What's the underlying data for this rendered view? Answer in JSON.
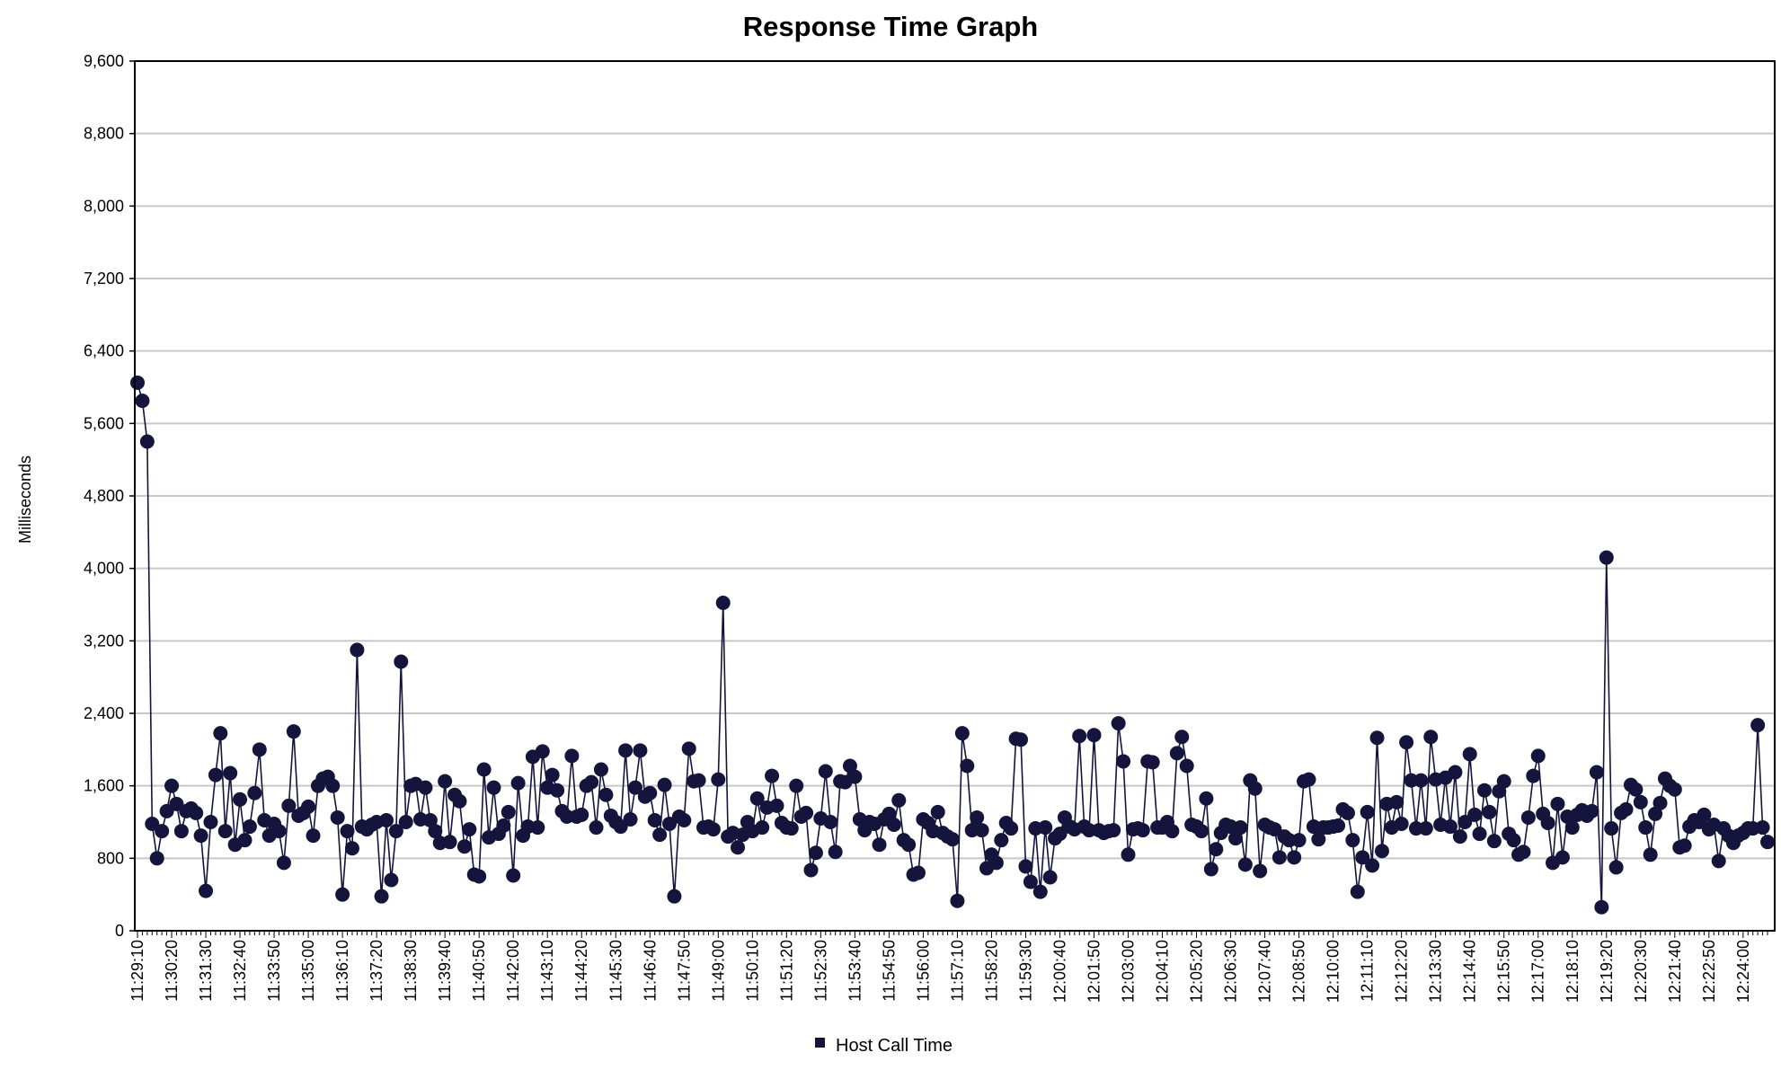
{
  "chart_data": {
    "type": "line",
    "title": "Response Time Graph",
    "xlabel": "",
    "ylabel": "Milliseconds",
    "ylim": [
      0,
      9600
    ],
    "yticks": [
      0,
      800,
      1600,
      2400,
      3200,
      4000,
      4800,
      5600,
      6400,
      7200,
      8000,
      8800,
      9600
    ],
    "x_tick_labels": [
      "11:29:10",
      "11:30:20",
      "11:31:30",
      "11:32:40",
      "11:33:50",
      "11:35:00",
      "11:36:10",
      "11:37:20",
      "11:38:30",
      "11:39:40",
      "11:40:50",
      "11:42:00",
      "11:43:10",
      "11:44:20",
      "11:45:30",
      "11:46:40",
      "11:47:50",
      "11:49:00",
      "11:50:10",
      "11:51:20",
      "11:52:30",
      "11:53:40",
      "11:54:50",
      "11:56:00",
      "11:57:10",
      "11:58:20",
      "11:59:30",
      "12:00:40",
      "12:01:50",
      "12:03:00",
      "12:04:10",
      "12:05:20",
      "12:06:30",
      "12:07:40",
      "12:08:50",
      "12:10:00",
      "12:11:10",
      "12:12:20",
      "12:13:30",
      "12:14:40",
      "12:15:50",
      "12:17:00",
      "12:18:10",
      "12:19:20",
      "12:20:30",
      "12:21:40",
      "12:22:50",
      "12:24:00"
    ],
    "grid": true,
    "legend_position": "bottom-center",
    "series": [
      {
        "name": "Host Call Time",
        "color": "#14143c",
        "values": [
          6050,
          5850,
          5400,
          1180,
          800,
          1100,
          1320,
          1600,
          1400,
          1100,
          1320,
          1350,
          1300,
          1050,
          440,
          1200,
          1720,
          2180,
          1100,
          1740,
          950,
          1450,
          1000,
          1150,
          1520,
          2000,
          1220,
          1050,
          1180,
          1100,
          750,
          1380,
          2200,
          1270,
          1300,
          1370,
          1050,
          1600,
          1680,
          1700,
          1600,
          1250,
          400,
          1100,
          910,
          3100,
          1150,
          1120,
          1170,
          1200,
          380,
          1220,
          560,
          1100,
          2970,
          1200,
          1600,
          1620,
          1230,
          1580,
          1220,
          1100,
          970,
          1650,
          980,
          1500,
          1430,
          930,
          1120,
          620,
          600,
          1780,
          1030,
          1580,
          1070,
          1160,
          1310,
          610,
          1630,
          1050,
          1150,
          1920,
          1140,
          1980,
          1580,
          1720,
          1550,
          1320,
          1260,
          1930,
          1260,
          1280,
          1600,
          1640,
          1140,
          1780,
          1500,
          1270,
          1200,
          1150,
          1990,
          1230,
          1580,
          1990,
          1480,
          1520,
          1220,
          1060,
          1610,
          1180,
          380,
          1260,
          1220,
          2010,
          1650,
          1660,
          1140,
          1150,
          1120,
          1670,
          3620,
          1040,
          1080,
          920,
          1060,
          1200,
          1100,
          1460,
          1140,
          1360,
          1710,
          1380,
          1190,
          1140,
          1130,
          1600,
          1260,
          1300,
          670,
          860,
          1240,
          1760,
          1200,
          870,
          1650,
          1640,
          1820,
          1700,
          1230,
          1110,
          1200,
          1180,
          950,
          1230,
          1290,
          1170,
          1440,
          1000,
          950,
          620,
          640,
          1230,
          1190,
          1100,
          1310,
          1080,
          1040,
          1010,
          330,
          2180,
          1820,
          1110,
          1250,
          1110,
          690,
          840,
          750,
          1000,
          1190,
          1130,
          2120,
          2110,
          710,
          540,
          1130,
          430,
          1140,
          590,
          1020,
          1070,
          1250,
          1150,
          1120,
          2150,
          1150,
          1110,
          2160,
          1110,
          1080,
          1100,
          1110,
          2290,
          1870,
          840,
          1120,
          1130,
          1110,
          1870,
          1860,
          1140,
          1140,
          1200,
          1100,
          1960,
          2140,
          1820,
          1170,
          1150,
          1100,
          1460,
          680,
          900,
          1080,
          1170,
          1150,
          1020,
          1140,
          730,
          1660,
          1570,
          660,
          1170,
          1140,
          1120,
          810,
          1040,
          1000,
          810,
          1000,
          1650,
          1670,
          1150,
          1010,
          1140,
          1140,
          1150,
          1160,
          1340,
          1300,
          1000,
          430,
          810,
          1310,
          720,
          2130,
          880,
          1400,
          1140,
          1420,
          1180,
          2080,
          1660,
          1130,
          1660,
          1130,
          2140,
          1670,
          1170,
          1690,
          1150,
          1750,
          1040,
          1200,
          1950,
          1280,
          1070,
          1550,
          1310,
          990,
          1540,
          1650,
          1070,
          1000,
          840,
          870,
          1250,
          1710,
          1930,
          1290,
          1190,
          750,
          1400,
          810,
          1260,
          1140,
          1280,
          1330,
          1270,
          1320,
          1750,
          260,
          4120,
          1130,
          700,
          1300,
          1340,
          1610,
          1560,
          1420,
          1140,
          840,
          1290,
          1410,
          1680,
          1600,
          1560,
          920,
          940,
          1150,
          1220,
          1200,
          1280,
          1120,
          1170,
          770,
          1130,
          1050,
          970,
          1050,
          1080,
          1130,
          1130,
          2270,
          1140,
          980
        ]
      }
    ]
  }
}
